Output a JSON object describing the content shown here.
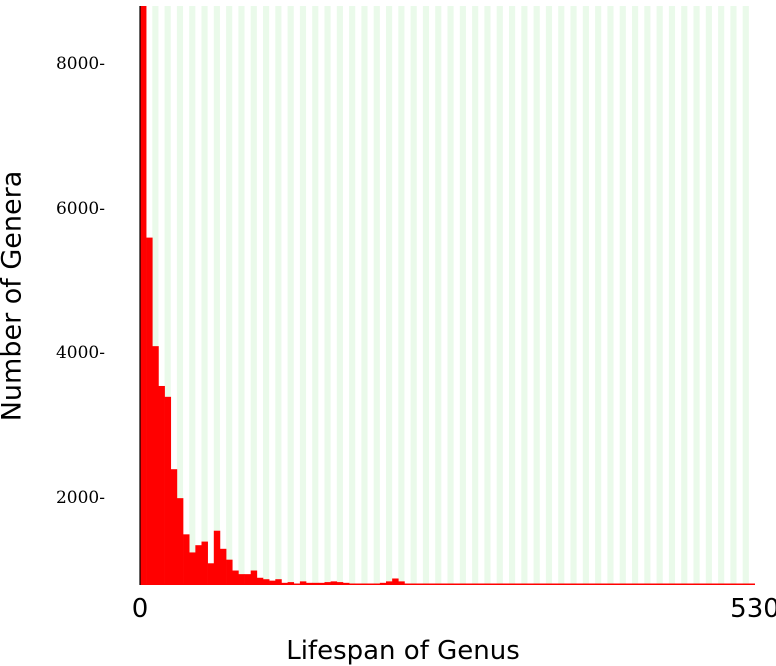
{
  "chart_data": {
    "type": "bar",
    "xlabel": "Lifespan of Genus",
    "ylabel": "Number of Genera",
    "xlim": [
      0,
      530
    ],
    "ylim": [
      800,
      8800
    ],
    "x_tick_labels": [
      "0",
      "530"
    ],
    "x_ticks": [
      0,
      530
    ],
    "y_tick_labels": [
      "2000-",
      "4000-",
      "6000-",
      "8000-"
    ],
    "y_ticks": [
      2000,
      4000,
      6000,
      8000
    ],
    "bin_width": 5.3,
    "values": [
      8800,
      5600,
      4100,
      3550,
      3400,
      2400,
      2000,
      1500,
      1250,
      1350,
      1400,
      1100,
      1550,
      1300,
      1150,
      1000,
      950,
      950,
      1000,
      900,
      880,
      860,
      880,
      830,
      840,
      820,
      850,
      830,
      830,
      830,
      840,
      850,
      840,
      830,
      820,
      810,
      810,
      820,
      820,
      830,
      850,
      890,
      850,
      820,
      810,
      810,
      810,
      800,
      800,
      800,
      800,
      800,
      800,
      800,
      800,
      800,
      800,
      800,
      800,
      800,
      800,
      800,
      800,
      800,
      800,
      800,
      800,
      800,
      800,
      800,
      800,
      800,
      800,
      800,
      800,
      800,
      800,
      800,
      800,
      800,
      800,
      800,
      800,
      800,
      800,
      800,
      800,
      800,
      800,
      800,
      800,
      800,
      800,
      800,
      800,
      800,
      800,
      800,
      800,
      800
    ],
    "grid": "vertical stripes",
    "legend": "none",
    "colors": {
      "bar": "#ff0000",
      "stripe": "#eafaea",
      "background": "#ffffff",
      "axis": "#000000"
    }
  }
}
